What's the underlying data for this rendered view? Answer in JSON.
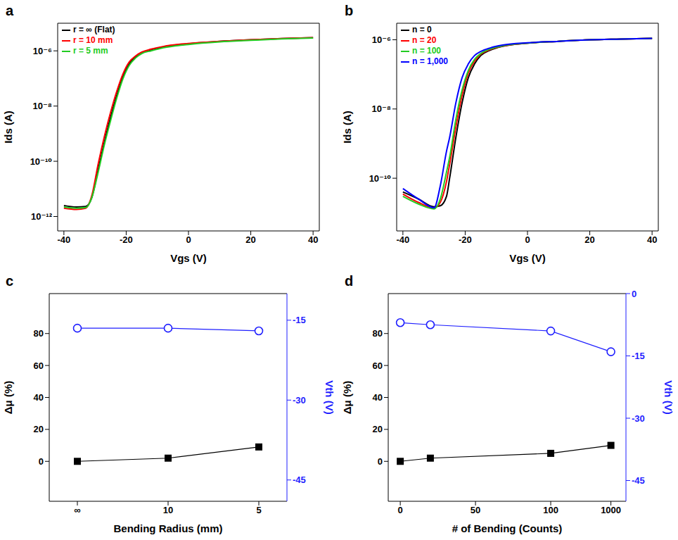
{
  "chart_data": [
    {
      "type": "line",
      "title": "a",
      "xlabel": "Vgs (V)",
      "ylabel": "Ids (A)",
      "log": "y",
      "legend": "upper left",
      "x": [
        -40,
        -36,
        -33,
        -31,
        -29,
        -27,
        -25,
        -23,
        -21,
        -19,
        -17,
        -15,
        -12,
        -8,
        0,
        10,
        20,
        30,
        40
      ],
      "xlim": [
        -42,
        42
      ],
      "xticks": [
        -40,
        -20,
        0,
        20,
        40
      ],
      "ylim": [
        3e-13,
        1e-05
      ],
      "yticks": [
        {
          "value": 1e-12,
          "label": "10⁻¹²"
        },
        {
          "value": 1e-10,
          "label": "10⁻¹⁰"
        },
        {
          "value": 1e-08,
          "label": "10⁻⁸"
        },
        {
          "value": 1e-06,
          "label": "10⁻⁶"
        }
      ],
      "series": [
        {
          "name": "r = ∞ (Flat)",
          "color": "#000000",
          "values": [
            2.5e-12,
            2.2e-12,
            2.3e-12,
            5e-12,
            5e-11,
            5e-10,
            4e-09,
            2.5e-08,
            1.2e-07,
            3.5e-07,
            6e-07,
            8.5e-07,
            1.1e-06,
            1.4e-06,
            1.8e-06,
            2.2e-06,
            2.5e-06,
            2.8e-06,
            3e-06
          ]
        },
        {
          "name": "r = 10 mm",
          "color": "#ff0000",
          "values": [
            2e-12,
            1.8e-12,
            2e-12,
            6e-12,
            8e-11,
            8e-10,
            6e-09,
            3.5e-08,
            1.5e-07,
            4e-07,
            6.5e-07,
            9e-07,
            1.15e-06,
            1.45e-06,
            1.85e-06,
            2.2e-06,
            2.5e-06,
            2.8e-06,
            3e-06
          ]
        },
        {
          "name": "r = 5 mm",
          "color": "#22cc22",
          "values": [
            2.2e-12,
            2e-12,
            2.1e-12,
            5e-12,
            4e-11,
            4e-10,
            3e-09,
            2e-08,
            1e-07,
            3e-07,
            5.5e-07,
            8e-07,
            1e-06,
            1.3e-06,
            1.7e-06,
            2.1e-06,
            2.4e-06,
            2.7e-06,
            2.9e-06
          ]
        }
      ]
    },
    {
      "type": "line",
      "title": "b",
      "xlabel": "Vgs (V)",
      "ylabel": "Ids (A)",
      "log": "y",
      "legend": "upper left",
      "x": [
        -40,
        -35,
        -30,
        -28,
        -26,
        -25,
        -23,
        -21,
        -19,
        -17,
        -15,
        -12,
        -8,
        0,
        10,
        20,
        30,
        40
      ],
      "xlim": [
        -42,
        42
      ],
      "xticks": [
        -40,
        -20,
        0,
        20,
        40
      ],
      "ylim": [
        3e-12,
        3e-06
      ],
      "yticks": [
        {
          "value": 1e-10,
          "label": "10⁻¹⁰"
        },
        {
          "value": 1e-08,
          "label": "10⁻⁸"
        },
        {
          "value": 1e-06,
          "label": "10⁻⁶"
        }
      ],
      "series": [
        {
          "name": "n = 0",
          "color": "#000000",
          "values": [
            4e-11,
            2.5e-11,
            1.5e-11,
            1.6e-11,
            3e-11,
            1e-10,
            1.5e-09,
            1.5e-08,
            8e-08,
            2e-07,
            3.5e-07,
            5e-07,
            6.5e-07,
            8e-07,
            9e-07,
            1e-06,
            1.05e-06,
            1.1e-06
          ]
        },
        {
          "name": "n = 20",
          "color": "#ff0000",
          "values": [
            3.5e-11,
            2e-11,
            1.4e-11,
            2e-11,
            8e-11,
            2.5e-10,
            3e-09,
            2.5e-08,
            1.1e-07,
            2.4e-07,
            3.8e-07,
            5.2e-07,
            6.6e-07,
            8e-07,
            9e-07,
            1e-06,
            1.05e-06,
            1.1e-06
          ]
        },
        {
          "name": "n = 100",
          "color": "#22cc22",
          "values": [
            3e-11,
            1.8e-11,
            1.3e-11,
            2.5e-11,
            1.5e-10,
            4e-10,
            5e-09,
            3.5e-08,
            1.3e-07,
            2.7e-07,
            4e-07,
            5.4e-07,
            6.7e-07,
            8e-07,
            9e-07,
            1e-06,
            1.05e-06,
            1.1e-06
          ]
        },
        {
          "name": "n = 1,000",
          "color": "#0000ff",
          "values": [
            5e-11,
            2.5e-11,
            1.4e-11,
            6e-11,
            6e-10,
            1.5e-09,
            1.5e-08,
            8e-08,
            2e-07,
            3.5e-07,
            4.6e-07,
            5.8e-07,
            7e-07,
            8.2e-07,
            9e-07,
            1e-06,
            1.05e-06,
            1.1e-06
          ]
        }
      ]
    },
    {
      "type": "line",
      "title": "c",
      "xlabel": "Bending Radius (mm)",
      "ylabel": "Δμ (%)",
      "y2label": "Vth (V)",
      "categories": [
        "∞",
        "10",
        "5"
      ],
      "ylim": [
        -25,
        105
      ],
      "yticks": [
        0,
        20,
        40,
        60,
        80
      ],
      "y2lim": [
        -49,
        -10
      ],
      "y2ticks": [
        -45,
        -30,
        -15
      ],
      "series": [
        {
          "color": "#000000",
          "marker": "square",
          "values": [
            0,
            2,
            9
          ]
        },
        {
          "color": "#1f1fff",
          "marker": "circle",
          "axis": "y2",
          "values": [
            -16.5,
            -16.5,
            -17
          ]
        }
      ]
    },
    {
      "type": "line",
      "title": "d",
      "xlabel": "# of Bending (Counts)",
      "ylabel": "Δμ (%)",
      "y2label": "Vth (V)",
      "x": [
        0,
        20,
        100,
        1000
      ],
      "xlim": [
        -8,
        1050
      ],
      "xticks": [
        0,
        50,
        100,
        1000
      ],
      "ylim": [
        -25,
        105
      ],
      "yticks": [
        0,
        20,
        40,
        60,
        80
      ],
      "y2lim": [
        -50,
        0
      ],
      "y2ticks": [
        -45,
        -30,
        -15,
        0
      ],
      "series": [
        {
          "color": "#000000",
          "marker": "square",
          "values": [
            0,
            2,
            5,
            10
          ]
        },
        {
          "color": "#1f1fff",
          "marker": "circle",
          "axis": "y2",
          "values": [
            -7,
            -7.5,
            -9,
            -14
          ]
        }
      ]
    }
  ]
}
